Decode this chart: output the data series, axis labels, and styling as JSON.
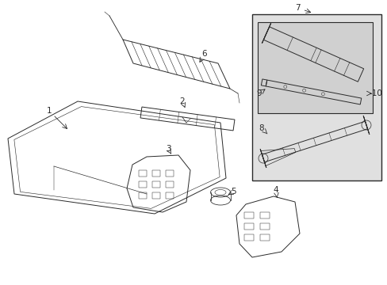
{
  "bg_color": "#ffffff",
  "outer_box_bg": "#e0e0e0",
  "inner_box_bg": "#d0d0d0",
  "line_color": "#2a2a2a",
  "lw": 0.7
}
